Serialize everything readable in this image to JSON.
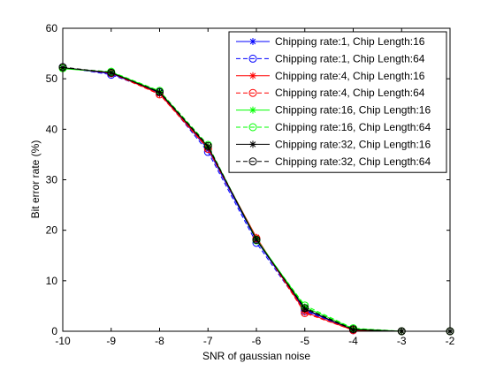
{
  "chart_data": {
    "type": "line",
    "title": "",
    "xlabel": "SNR of gaussian noise",
    "ylabel": "Bit error rate (%)",
    "xlim": [
      -10,
      -2
    ],
    "ylim": [
      0,
      60
    ],
    "xticks": [
      -10,
      -9,
      -8,
      -7,
      -6,
      -5,
      -4,
      -3,
      -2
    ],
    "yticks": [
      0,
      10,
      20,
      30,
      40,
      50,
      60
    ],
    "grid": false,
    "legend_position": "top-right",
    "x": [
      -10,
      -9,
      -8,
      -7,
      -6,
      -5,
      -4,
      -3,
      -2
    ],
    "series": [
      {
        "name": "Chipping rate:1, Chip Length:16",
        "color": "#0000ff",
        "line_style": "solid",
        "marker": "star",
        "values": [
          52.2,
          51.0,
          47.2,
          36.0,
          18.0,
          4.2,
          0.3,
          0.0,
          0.0
        ]
      },
      {
        "name": "Chipping rate:1, Chip Length:64",
        "color": "#0000ff",
        "line_style": "dashed",
        "marker": "circle",
        "values": [
          52.3,
          50.8,
          47.3,
          35.5,
          17.5,
          4.0,
          0.2,
          0.0,
          0.0
        ]
      },
      {
        "name": "Chipping rate:4, Chip Length:16",
        "color": "#ff0000",
        "line_style": "solid",
        "marker": "star",
        "values": [
          52.1,
          51.2,
          47.0,
          36.3,
          18.6,
          3.8,
          0.2,
          0.0,
          0.0
        ]
      },
      {
        "name": "Chipping rate:4, Chip Length:64",
        "color": "#ff0000",
        "line_style": "dashed",
        "marker": "circle",
        "values": [
          52.2,
          51.1,
          46.9,
          36.1,
          18.4,
          3.6,
          0.2,
          0.0,
          0.0
        ]
      },
      {
        "name": "Chipping rate:16, Chip Length:16",
        "color": "#00ff00",
        "line_style": "solid",
        "marker": "star",
        "values": [
          52.0,
          51.3,
          47.5,
          36.6,
          18.3,
          4.8,
          0.5,
          0.0,
          0.0
        ]
      },
      {
        "name": "Chipping rate:16, Chip Length:64",
        "color": "#00ff00",
        "line_style": "dashed",
        "marker": "circle",
        "values": [
          52.1,
          51.4,
          47.6,
          36.9,
          18.0,
          5.1,
          0.6,
          0.0,
          0.0
        ]
      },
      {
        "name": "Chipping rate:32, Chip Length:16",
        "color": "#000000",
        "line_style": "solid",
        "marker": "star",
        "values": [
          52.2,
          51.2,
          47.3,
          36.5,
          18.2,
          4.4,
          0.3,
          0.0,
          0.0
        ]
      },
      {
        "name": "Chipping rate:32, Chip Length:64",
        "color": "#000000",
        "line_style": "dashed",
        "marker": "circle",
        "values": [
          52.3,
          51.2,
          47.4,
          36.7,
          18.1,
          4.6,
          0.4,
          0.0,
          0.0
        ]
      }
    ]
  }
}
